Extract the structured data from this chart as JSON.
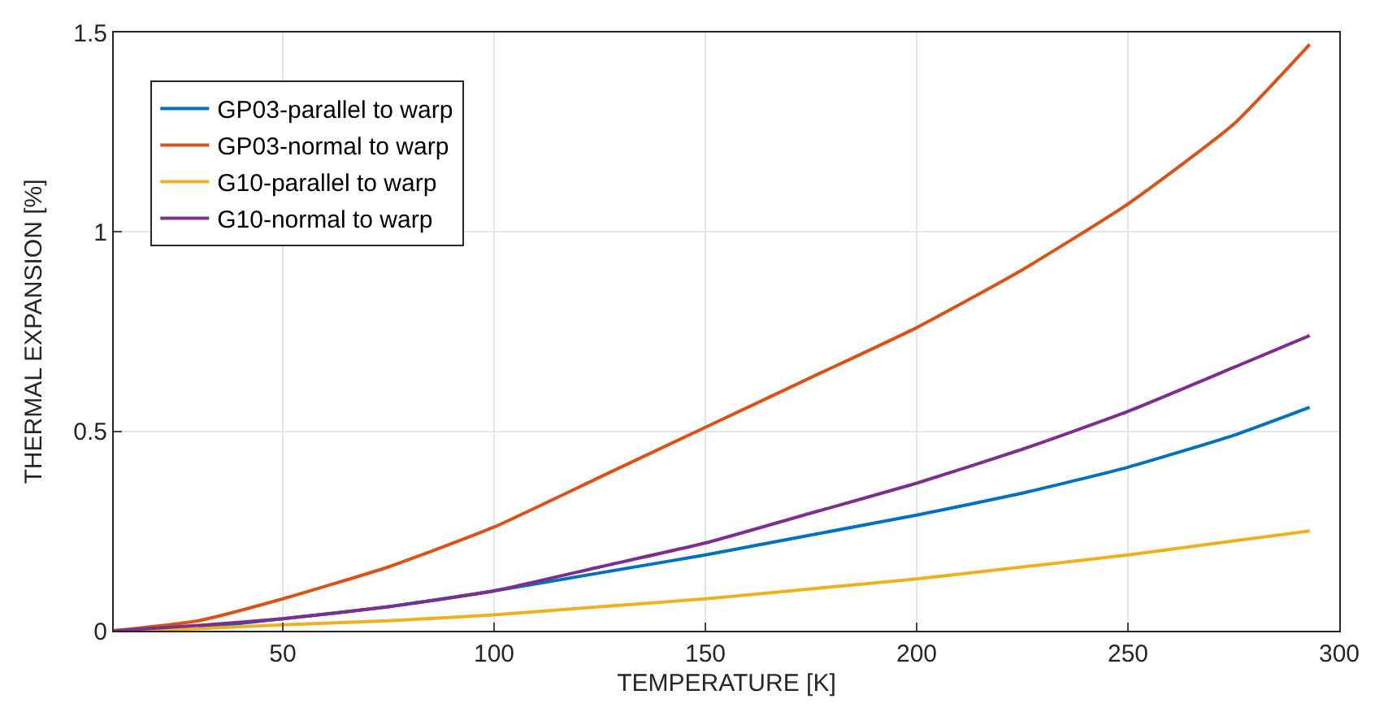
{
  "chart_data": {
    "type": "line",
    "xlabel": "TEMPERATURE [K]",
    "ylabel": "THERMAL EXPANSION [%]",
    "x": [
      10,
      30,
      50,
      75,
      100,
      125,
      150,
      175,
      200,
      225,
      250,
      275,
      293
    ],
    "series": [
      {
        "name": "GP03-parallel to warp",
        "color": "#0072bd",
        "values": [
          null,
          0.007,
          0.03,
          0.06,
          0.1,
          0.145,
          0.19,
          0.24,
          0.29,
          0.345,
          0.41,
          0.49,
          0.56
        ]
      },
      {
        "name": "GP03-normal to warp",
        "color": "#d95319",
        "values": [
          0,
          0.025,
          0.08,
          0.16,
          0.26,
          0.385,
          0.51,
          0.635,
          0.76,
          0.905,
          1.07,
          1.27,
          1.47
        ]
      },
      {
        "name": "G10-parallel to warp",
        "color": "#edb120",
        "values": [
          0,
          0.005,
          0.015,
          0.025,
          0.04,
          0.06,
          0.08,
          0.105,
          0.13,
          0.16,
          0.19,
          0.225,
          0.25
        ]
      },
      {
        "name": "G10-normal to warp",
        "color": "#7e2f8e",
        "values": [
          0,
          0.013,
          0.03,
          0.06,
          0.1,
          0.16,
          0.22,
          0.295,
          0.37,
          0.455,
          0.55,
          0.66,
          0.74
        ]
      }
    ],
    "xlim": [
      10,
      300
    ],
    "xticks": [
      50,
      100,
      150,
      200,
      250,
      300
    ],
    "ylim": [
      0,
      1.5
    ],
    "yticks": [
      0,
      0.5,
      1,
      1.5
    ],
    "grid": true,
    "legend": "top left",
    "marker": "none",
    "line_style": "solid"
  }
}
